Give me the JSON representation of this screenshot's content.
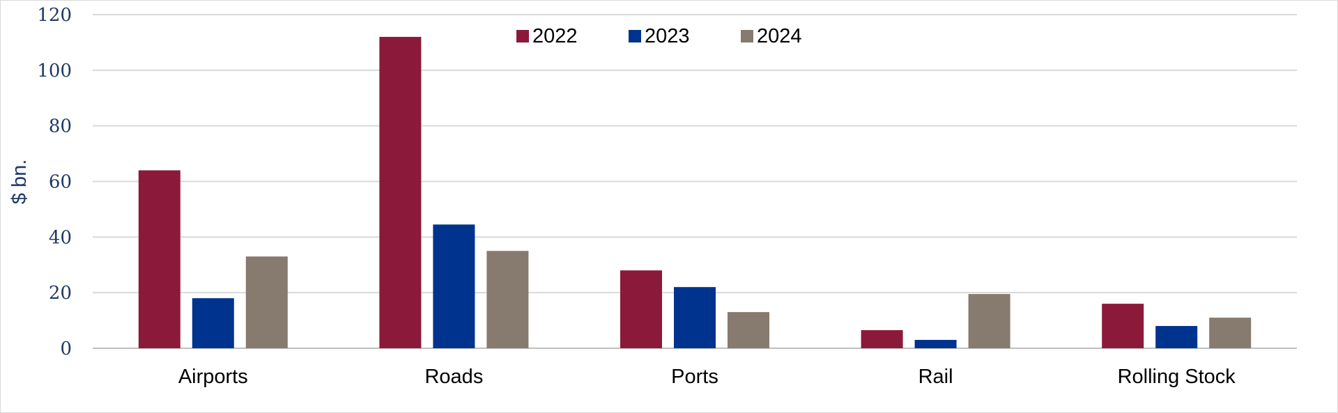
{
  "chart_data": {
    "type": "bar",
    "title": "",
    "xlabel": "",
    "ylabel": "$ bn.",
    "ylim": [
      0,
      120
    ],
    "yticks": [
      0,
      20,
      40,
      60,
      80,
      100,
      120
    ],
    "grid": true,
    "legend_position": "top-center",
    "categories": [
      "Airports",
      "Roads",
      "Ports",
      "Rail",
      "Rolling Stock"
    ],
    "series": [
      {
        "name": "2022",
        "color": "#8b1a3a",
        "values": [
          64,
          112,
          28,
          6.5,
          16
        ]
      },
      {
        "name": "2023",
        "color": "#00338d",
        "values": [
          18,
          44.5,
          22,
          3,
          8
        ]
      },
      {
        "name": "2024",
        "color": "#877a6e",
        "values": [
          33,
          35,
          13,
          19.5,
          11
        ]
      }
    ]
  }
}
